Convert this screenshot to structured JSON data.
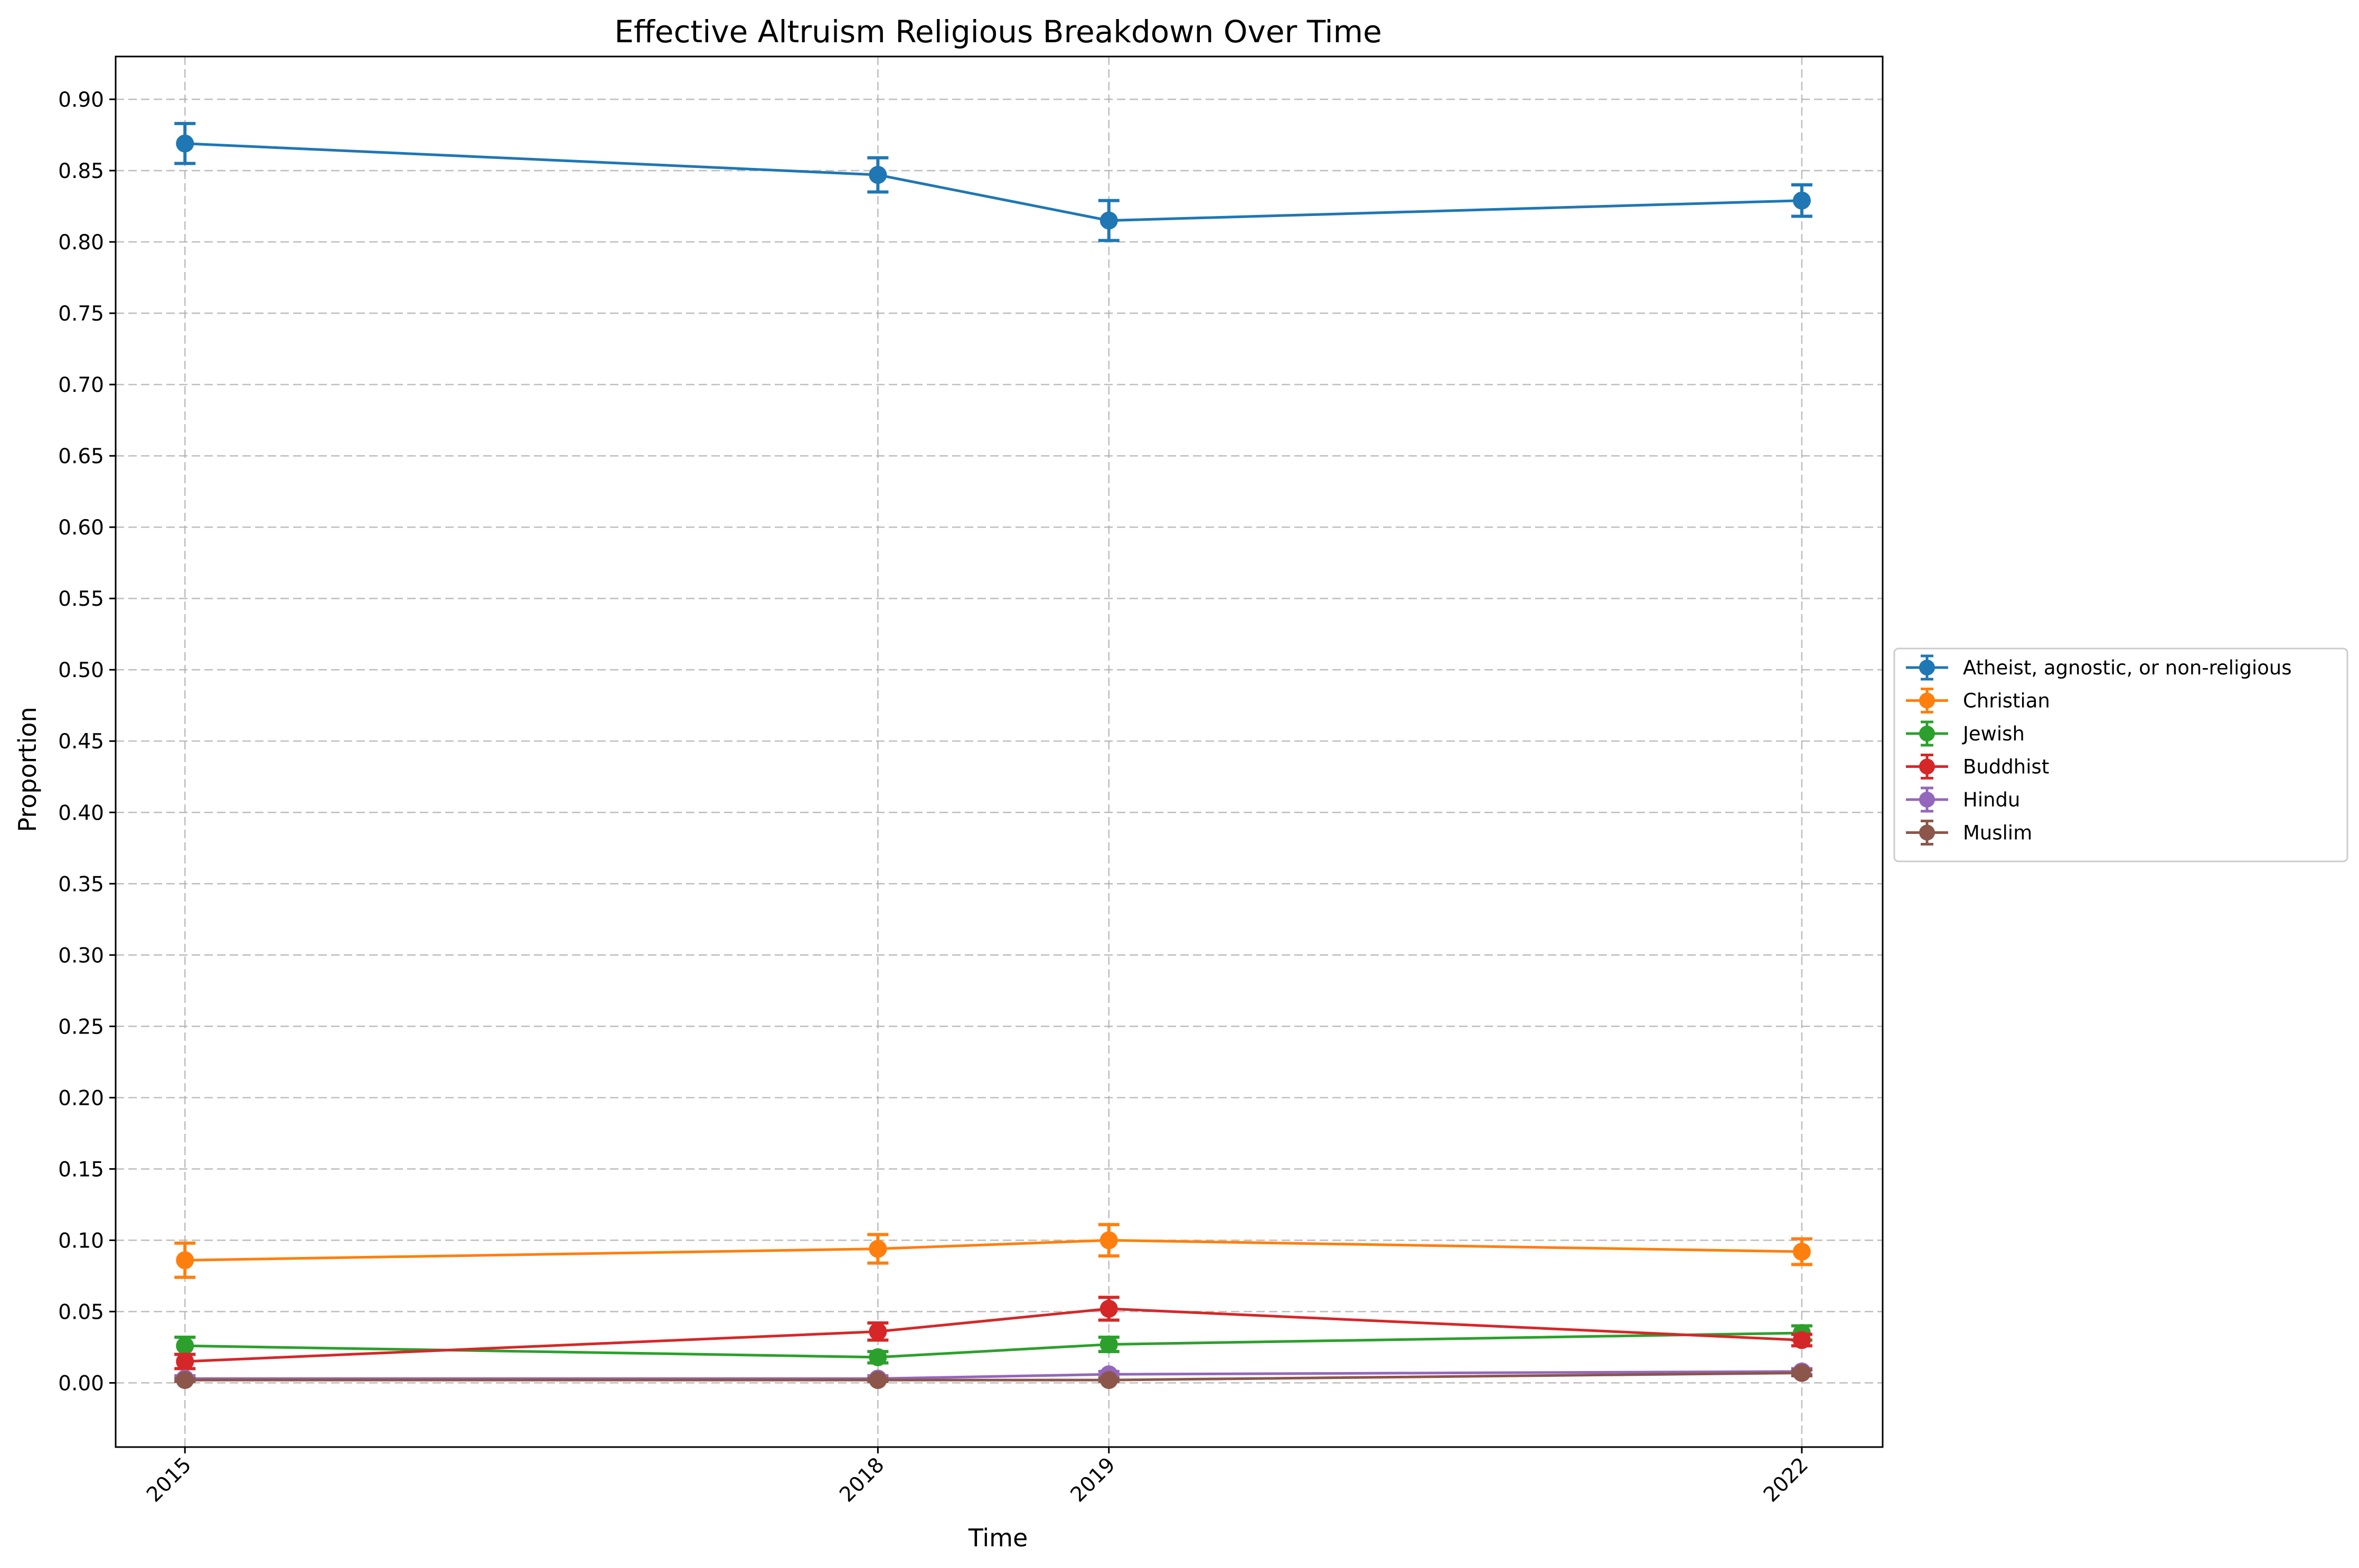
{
  "chart_data": {
    "type": "line",
    "title": "Effective Altruism Religious Breakdown Over Time",
    "xlabel": "Time",
    "ylabel": "Proportion",
    "x": [
      2015,
      2018,
      2019,
      2022
    ],
    "x_tick_labels": [
      "2015",
      "2018",
      "2019",
      "2022"
    ],
    "xlim": [
      2014.7,
      2022.35
    ],
    "ylim": [
      -0.045,
      0.93
    ],
    "y_ticks": [
      "0.00",
      "0.05",
      "0.10",
      "0.15",
      "0.20",
      "0.25",
      "0.30",
      "0.35",
      "0.40",
      "0.45",
      "0.50",
      "0.55",
      "0.60",
      "0.65",
      "0.70",
      "0.75",
      "0.80",
      "0.85",
      "0.90"
    ],
    "grid": true,
    "legend_position": "center-right, outside plot",
    "series": [
      {
        "name": "Atheist, agnostic, or non-religious",
        "color": "#1f77b4",
        "values": [
          0.869,
          0.847,
          0.815,
          0.829
        ],
        "errors": [
          0.014,
          0.012,
          0.014,
          0.011
        ]
      },
      {
        "name": "Christian",
        "color": "#ff7f0e",
        "values": [
          0.086,
          0.094,
          0.1,
          0.092
        ],
        "errors": [
          0.012,
          0.01,
          0.011,
          0.009
        ]
      },
      {
        "name": "Jewish",
        "color": "#2ca02c",
        "values": [
          0.026,
          0.018,
          0.027,
          0.035
        ],
        "errors": [
          0.006,
          0.004,
          0.005,
          0.005
        ]
      },
      {
        "name": "Buddhist",
        "color": "#d62728",
        "values": [
          0.015,
          0.036,
          0.052,
          0.03
        ],
        "errors": [
          0.005,
          0.006,
          0.008,
          0.004
        ]
      },
      {
        "name": "Hindu",
        "color": "#9467bd",
        "values": [
          0.003,
          0.003,
          0.006,
          0.008
        ],
        "errors": [
          0.002,
          0.002,
          0.002,
          0.002
        ]
      },
      {
        "name": "Muslim",
        "color": "#8c564b",
        "values": [
          0.002,
          0.002,
          0.002,
          0.007
        ],
        "errors": [
          0.001,
          0.001,
          0.001,
          0.002
        ]
      }
    ]
  }
}
